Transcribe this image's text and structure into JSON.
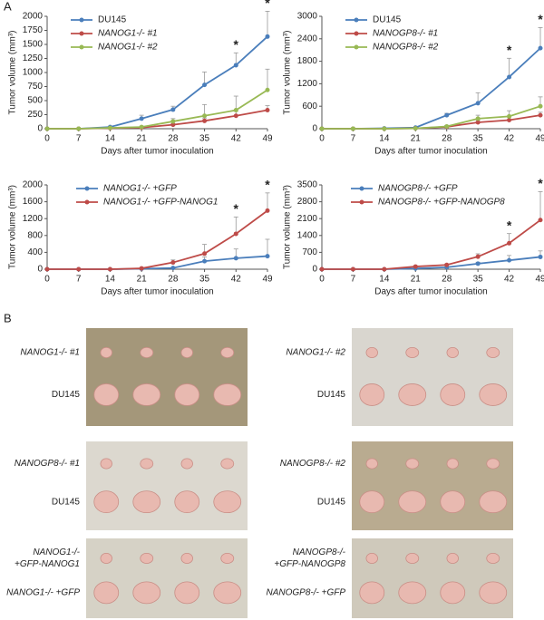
{
  "panels": {
    "a": "A",
    "b": "B"
  },
  "chart_data": [
    {
      "type": "line",
      "y_label": "Tumor volume (mm³)",
      "x_label": "Days after tumor inoculation",
      "x": [
        0,
        7,
        14,
        21,
        28,
        35,
        42,
        49
      ],
      "xlim": [
        0,
        49
      ],
      "xticks": [
        0,
        7,
        14,
        21,
        28,
        35,
        42,
        49
      ],
      "ylim": [
        0,
        2000
      ],
      "yticks": [
        0,
        250,
        500,
        750,
        1000,
        1250,
        1500,
        1750,
        2000
      ],
      "legend": "upper left",
      "series": [
        {
          "name": "DU145",
          "color": "#4a7ebb",
          "values": [
            0,
            0,
            30,
            180,
            340,
            780,
            1130,
            1640
          ],
          "errors": [
            0,
            0,
            10,
            60,
            60,
            230,
            220,
            450
          ]
        },
        {
          "name": "NANOG1-/- #1",
          "color": "#be4b48",
          "values": [
            0,
            0,
            10,
            20,
            70,
            140,
            230,
            330
          ],
          "errors": [
            0,
            0,
            5,
            10,
            20,
            50,
            80,
            80
          ]
        },
        {
          "name": "NANOG1-/- #2",
          "color": "#98b954",
          "values": [
            0,
            0,
            15,
            30,
            130,
            230,
            330,
            690
          ],
          "errors": [
            0,
            0,
            5,
            15,
            50,
            200,
            250,
            370
          ]
        }
      ],
      "annotations": [
        {
          "text": "*",
          "x": 42
        },
        {
          "text": "*",
          "x": 49
        }
      ]
    },
    {
      "type": "line",
      "y_label": "Tumor volume (mm³)",
      "x_label": "Days after tumor inoculation",
      "x": [
        0,
        7,
        14,
        21,
        28,
        35,
        42,
        49
      ],
      "xlim": [
        0,
        49
      ],
      "xticks": [
        0,
        7,
        14,
        21,
        28,
        35,
        42,
        49
      ],
      "ylim": [
        0,
        3000
      ],
      "yticks": [
        0,
        600,
        1200,
        1800,
        2400,
        3000
      ],
      "legend": "upper left",
      "series": [
        {
          "name": "DU145",
          "color": "#4a7ebb",
          "values": [
            0,
            0,
            10,
            30,
            360,
            680,
            1380,
            2150
          ],
          "errors": [
            0,
            0,
            5,
            10,
            50,
            280,
            500,
            550
          ]
        },
        {
          "name": "NANOGP8-/- #1",
          "color": "#be4b48",
          "values": [
            0,
            0,
            0,
            10,
            50,
            170,
            230,
            360
          ],
          "errors": [
            0,
            0,
            0,
            5,
            30,
            60,
            80,
            80
          ]
        },
        {
          "name": "NANOGP8-/- #2",
          "color": "#98b954",
          "values": [
            0,
            0,
            0,
            10,
            60,
            270,
            330,
            600
          ],
          "errors": [
            0,
            0,
            0,
            5,
            30,
            90,
            150,
            250
          ]
        }
      ],
      "annotations": [
        {
          "text": "*",
          "x": 42
        },
        {
          "text": "*",
          "x": 49
        }
      ]
    },
    {
      "type": "line",
      "y_label": "Tumor volume (mm³)",
      "x_label": "Days after tumor inoculation",
      "x": [
        0,
        7,
        14,
        21,
        28,
        35,
        42,
        49
      ],
      "xlim": [
        0,
        49
      ],
      "xticks": [
        0,
        7,
        14,
        21,
        28,
        35,
        42,
        49
      ],
      "ylim": [
        0,
        2000
      ],
      "yticks": [
        0,
        400,
        800,
        1200,
        1600,
        2000
      ],
      "legend": "upper left",
      "series": [
        {
          "name": "NANOG1-/- +GFP",
          "color": "#4a7ebb",
          "values": [
            0,
            0,
            0,
            10,
            30,
            190,
            260,
            310
          ],
          "errors": [
            0,
            0,
            0,
            5,
            10,
            100,
            220,
            400
          ]
        },
        {
          "name": "NANOG1-/- +GFP-NANOG1",
          "color": "#be4b48",
          "values": [
            0,
            0,
            0,
            20,
            160,
            370,
            840,
            1390
          ],
          "errors": [
            0,
            0,
            0,
            10,
            60,
            220,
            400,
            420
          ]
        }
      ],
      "annotations": [
        {
          "text": "*",
          "x": 42
        },
        {
          "text": "*",
          "x": 49
        }
      ]
    },
    {
      "type": "line",
      "y_label": "Tumor volume (mm³)",
      "x_label": "Days after tumor inoculation",
      "x": [
        0,
        7,
        14,
        21,
        28,
        35,
        42,
        49
      ],
      "xlim": [
        0,
        49
      ],
      "xticks": [
        0,
        7,
        14,
        21,
        28,
        35,
        42,
        49
      ],
      "ylim": [
        0,
        3500
      ],
      "yticks": [
        0,
        700,
        1400,
        2100,
        2800,
        3500
      ],
      "legend": "upper left",
      "series": [
        {
          "name": "NANOGP8-/- +GFP",
          "color": "#4a7ebb",
          "values": [
            0,
            0,
            0,
            30,
            80,
            230,
            370,
            510
          ],
          "errors": [
            0,
            0,
            0,
            10,
            20,
            60,
            200,
            250
          ]
        },
        {
          "name": "NANOGP8-/- +GFP-NANOGP8",
          "color": "#be4b48",
          "values": [
            0,
            0,
            0,
            110,
            180,
            520,
            1080,
            2040
          ],
          "errors": [
            0,
            0,
            0,
            30,
            40,
            120,
            400,
            1180
          ]
        }
      ],
      "annotations": [
        {
          "text": "*",
          "x": 42
        },
        {
          "text": "*",
          "x": 49
        }
      ]
    }
  ],
  "photos": [
    {
      "labels": [
        [
          "NANOG1-/- #1"
        ],
        [
          "DU145"
        ]
      ]
    },
    {
      "labels": [
        [
          "NANOG1-/- #2"
        ],
        [
          "DU145"
        ]
      ]
    },
    {
      "labels": [
        [
          "NANOGP8-/- #1"
        ],
        [
          "DU145"
        ]
      ]
    },
    {
      "labels": [
        [
          "NANOGP8-/- #2"
        ],
        [
          "DU145"
        ]
      ]
    },
    {
      "labels": [
        [
          "NANOG1-/-",
          "+GFP-NANOG1"
        ],
        [
          "NANOG1-/- +GFP"
        ]
      ]
    },
    {
      "labels": [
        [
          "NANOGP8-/-",
          "+GFP-NANOGP8"
        ],
        [
          "NANOGP8-/- +GFP"
        ]
      ]
    }
  ]
}
